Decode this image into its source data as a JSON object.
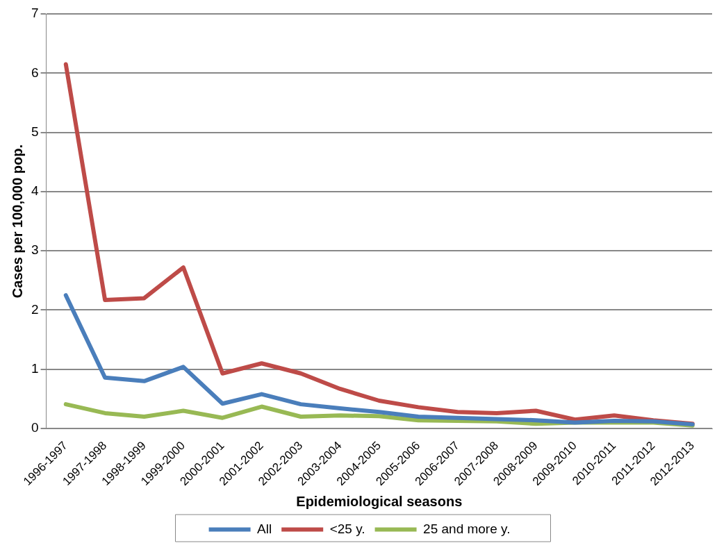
{
  "chart_data": {
    "type": "line",
    "xlabel": "Epidemiological seasons",
    "ylabel": "Cases per 100,000 pop.",
    "categories": [
      "1996-1997",
      "1997-1998",
      "1998-1999",
      "1999-2000",
      "2000-2001",
      "2001-2002",
      "2002-2003",
      "2003-2004",
      "2004-2005",
      "2005-2006",
      "2006-2007",
      "2007-2008",
      "2008-2009",
      "2009-2010",
      "2010-2011",
      "2011-2012",
      "2012-2013"
    ],
    "series": [
      {
        "name": "All",
        "color": "#4a7ebb",
        "values": [
          2.25,
          0.86,
          0.8,
          1.04,
          0.42,
          0.58,
          0.41,
          0.34,
          0.28,
          0.2,
          0.18,
          0.16,
          0.14,
          0.1,
          0.13,
          0.12,
          0.07
        ]
      },
      {
        "name": "<25 y.",
        "color": "#be4b48",
        "values": [
          6.15,
          2.17,
          2.2,
          2.72,
          0.93,
          1.1,
          0.93,
          0.67,
          0.47,
          0.36,
          0.28,
          0.26,
          0.3,
          0.15,
          0.22,
          0.14,
          0.08
        ]
      },
      {
        "name": "25 and more y.",
        "color": "#98b954",
        "values": [
          0.41,
          0.26,
          0.2,
          0.3,
          0.18,
          0.37,
          0.2,
          0.22,
          0.21,
          0.14,
          0.13,
          0.12,
          0.08,
          0.1,
          0.1,
          0.1,
          0.05
        ]
      }
    ],
    "ylim": [
      0,
      7
    ],
    "yticks": [
      0,
      1,
      2,
      3,
      4,
      5,
      6,
      7
    ],
    "grid": "y",
    "legend": "bottom",
    "marker": "none",
    "line_style": "solid"
  }
}
